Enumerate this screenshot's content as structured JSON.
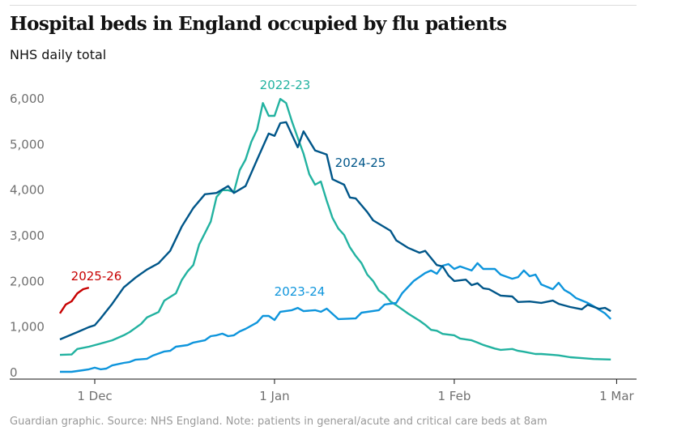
{
  "header": {
    "title": "Hospital beds in England occupied by flu patients",
    "subtitle": "NHS daily total"
  },
  "footer": "Guardian graphic. Source: NHS England. Note: patients in general/acute and critical care beds at 8am",
  "chart_data": {
    "type": "line",
    "title": "Hospital beds in England occupied by flu patients",
    "subtitle": "NHS daily total",
    "xlabel": "",
    "ylabel": "",
    "ylim": [
      0,
      6000
    ],
    "yticks": [
      0,
      1000,
      2000,
      3000,
      4000,
      5000,
      6000
    ],
    "ytick_labels": [
      "0",
      "1,000",
      "2,000",
      "3,000",
      "4,000",
      "5,000",
      "6,000"
    ],
    "xticks": [
      "1 Dec",
      "1 Jan",
      "1 Feb",
      "1 Mar"
    ],
    "grid": false,
    "legend": "direct labels",
    "series": [
      {
        "name": "2022-23",
        "color": "#22b2a0",
        "points": [
          [
            "25 Nov",
            530
          ],
          [
            "27 Nov",
            540
          ],
          [
            "28 Nov",
            660
          ],
          [
            "30 Nov",
            710
          ],
          [
            "2 Dec",
            780
          ],
          [
            "4 Dec",
            850
          ],
          [
            "6 Dec",
            960
          ],
          [
            "7 Dec",
            1030
          ],
          [
            "9 Dec",
            1210
          ],
          [
            "10 Dec",
            1350
          ],
          [
            "12 Dec",
            1470
          ],
          [
            "13 Dec",
            1720
          ],
          [
            "15 Dec",
            1880
          ],
          [
            "16 Dec",
            2170
          ],
          [
            "17 Dec",
            2360
          ],
          [
            "18 Dec",
            2500
          ],
          [
            "19 Dec",
            2950
          ],
          [
            "21 Dec",
            3450
          ],
          [
            "22 Dec",
            3990
          ],
          [
            "23 Dec",
            4140
          ],
          [
            "24 Dec",
            4140
          ],
          [
            "25 Dec",
            4100
          ],
          [
            "26 Dec",
            4580
          ],
          [
            "27 Dec",
            4810
          ],
          [
            "28 Dec",
            5200
          ],
          [
            "29 Dec",
            5470
          ],
          [
            "30 Dec",
            6050
          ],
          [
            "31 Dec",
            5770
          ],
          [
            "1 Jan",
            5770
          ],
          [
            "2 Jan",
            6140
          ],
          [
            "3 Jan",
            6050
          ],
          [
            "4 Jan",
            5650
          ],
          [
            "5 Jan",
            5290
          ],
          [
            "6 Jan",
            4940
          ],
          [
            "7 Jan",
            4490
          ],
          [
            "8 Jan",
            4260
          ],
          [
            "9 Jan",
            4330
          ],
          [
            "10 Jan",
            3910
          ],
          [
            "11 Jan",
            3530
          ],
          [
            "12 Jan",
            3300
          ],
          [
            "13 Jan",
            3160
          ],
          [
            "14 Jan",
            2890
          ],
          [
            "15 Jan",
            2700
          ],
          [
            "16 Jan",
            2540
          ],
          [
            "17 Jan",
            2290
          ],
          [
            "18 Jan",
            2150
          ],
          [
            "19 Jan",
            1940
          ],
          [
            "20 Jan",
            1850
          ],
          [
            "21 Jan",
            1700
          ],
          [
            "22 Jan",
            1620
          ],
          [
            "23 Jan",
            1530
          ],
          [
            "24 Jan",
            1440
          ],
          [
            "26 Jan",
            1280
          ],
          [
            "27 Jan",
            1190
          ],
          [
            "28 Jan",
            1080
          ],
          [
            "29 Jan",
            1060
          ],
          [
            "30 Jan",
            990
          ],
          [
            "1 Feb",
            960
          ],
          [
            "2 Feb",
            890
          ],
          [
            "4 Feb",
            850
          ],
          [
            "5 Feb",
            800
          ],
          [
            "6 Feb",
            750
          ],
          [
            "8 Feb",
            670
          ],
          [
            "9 Feb",
            640
          ],
          [
            "11 Feb",
            660
          ],
          [
            "12 Feb",
            620
          ],
          [
            "13 Feb",
            600
          ],
          [
            "15 Feb",
            550
          ],
          [
            "16 Feb",
            550
          ],
          [
            "18 Feb",
            530
          ],
          [
            "19 Feb",
            520
          ],
          [
            "21 Feb",
            480
          ],
          [
            "23 Feb",
            460
          ],
          [
            "25 Feb",
            440
          ],
          [
            "28 Feb",
            430
          ]
        ]
      },
      {
        "name": "2023-24",
        "color": "#0e95dc",
        "points": [
          [
            "25 Nov",
            160
          ],
          [
            "27 Nov",
            160
          ],
          [
            "29 Nov",
            195
          ],
          [
            "30 Nov",
            215
          ],
          [
            "1 Dec",
            250
          ],
          [
            "2 Dec",
            215
          ],
          [
            "3 Dec",
            230
          ],
          [
            "4 Dec",
            300
          ],
          [
            "6 Dec",
            355
          ],
          [
            "7 Dec",
            375
          ],
          [
            "8 Dec",
            425
          ],
          [
            "10 Dec",
            445
          ],
          [
            "11 Dec",
            515
          ],
          [
            "13 Dec",
            605
          ],
          [
            "14 Dec",
            620
          ],
          [
            "15 Dec",
            710
          ],
          [
            "17 Dec",
            745
          ],
          [
            "18 Dec",
            800
          ],
          [
            "20 Dec",
            850
          ],
          [
            "21 Dec",
            940
          ],
          [
            "22 Dec",
            960
          ],
          [
            "23 Dec",
            995
          ],
          [
            "24 Dec",
            940
          ],
          [
            "25 Dec",
            960
          ],
          [
            "26 Dec",
            1045
          ],
          [
            "27 Dec",
            1100
          ],
          [
            "29 Dec",
            1240
          ],
          [
            "30 Dec",
            1385
          ],
          [
            "31 Dec",
            1385
          ],
          [
            "1 Jan",
            1295
          ],
          [
            "2 Jan",
            1475
          ],
          [
            "4 Jan",
            1510
          ],
          [
            "5 Jan",
            1560
          ],
          [
            "6 Jan",
            1490
          ],
          [
            "8 Jan",
            1510
          ],
          [
            "9 Jan",
            1475
          ],
          [
            "10 Jan",
            1545
          ],
          [
            "12 Jan",
            1315
          ],
          [
            "15 Jan",
            1330
          ],
          [
            "16 Jan",
            1455
          ],
          [
            "19 Jan",
            1510
          ],
          [
            "20 Jan",
            1635
          ],
          [
            "22 Jan",
            1670
          ],
          [
            "23 Jan",
            1880
          ],
          [
            "25 Jan",
            2150
          ],
          [
            "27 Jan",
            2325
          ],
          [
            "28 Jan",
            2380
          ],
          [
            "29 Jan",
            2310
          ],
          [
            "30 Jan",
            2485
          ],
          [
            "31 Jan",
            2520
          ],
          [
            "1 Feb",
            2415
          ],
          [
            "2 Feb",
            2470
          ],
          [
            "4 Feb",
            2380
          ],
          [
            "5 Feb",
            2540
          ],
          [
            "6 Feb",
            2415
          ],
          [
            "8 Feb",
            2415
          ],
          [
            "9 Feb",
            2290
          ],
          [
            "11 Feb",
            2200
          ],
          [
            "12 Feb",
            2235
          ],
          [
            "13 Feb",
            2380
          ],
          [
            "14 Feb",
            2255
          ],
          [
            "15 Feb",
            2290
          ],
          [
            "16 Feb",
            2075
          ],
          [
            "18 Feb",
            1970
          ],
          [
            "19 Feb",
            2110
          ],
          [
            "20 Feb",
            1950
          ],
          [
            "21 Feb",
            1880
          ],
          [
            "22 Feb",
            1775
          ],
          [
            "24 Feb",
            1670
          ],
          [
            "25 Feb",
            1600
          ],
          [
            "27 Feb",
            1440
          ],
          [
            "28 Feb",
            1315
          ]
        ]
      },
      {
        "name": "2024-25",
        "color": "#005689",
        "points": [
          [
            "25 Nov",
            870
          ],
          [
            "28 Nov",
            1030
          ],
          [
            "30 Nov",
            1140
          ],
          [
            "1 Dec",
            1180
          ],
          [
            "2 Dec",
            1330
          ],
          [
            "4 Dec",
            1650
          ],
          [
            "6 Dec",
            2010
          ],
          [
            "8 Dec",
            2220
          ],
          [
            "10 Dec",
            2400
          ],
          [
            "12 Dec",
            2540
          ],
          [
            "14 Dec",
            2810
          ],
          [
            "16 Dec",
            3340
          ],
          [
            "18 Dec",
            3750
          ],
          [
            "20 Dec",
            4050
          ],
          [
            "22 Dec",
            4080
          ],
          [
            "24 Dec",
            4230
          ],
          [
            "25 Dec",
            4080
          ],
          [
            "27 Dec",
            4230
          ],
          [
            "29 Dec",
            4810
          ],
          [
            "31 Dec",
            5380
          ],
          [
            "1 Jan",
            5330
          ],
          [
            "2 Jan",
            5610
          ],
          [
            "3 Jan",
            5630
          ],
          [
            "5 Jan",
            5080
          ],
          [
            "6 Jan",
            5430
          ],
          [
            "8 Jan",
            5010
          ],
          [
            "10 Jan",
            4920
          ],
          [
            "11 Jan",
            4380
          ],
          [
            "13 Jan",
            4260
          ],
          [
            "14 Jan",
            3980
          ],
          [
            "15 Jan",
            3960
          ],
          [
            "17 Jan",
            3660
          ],
          [
            "18 Jan",
            3480
          ],
          [
            "21 Jan",
            3250
          ],
          [
            "22 Jan",
            3040
          ],
          [
            "24 Jan",
            2880
          ],
          [
            "26 Jan",
            2770
          ],
          [
            "27 Jan",
            2810
          ],
          [
            "29 Jan",
            2500
          ],
          [
            "30 Jan",
            2470
          ],
          [
            "31 Jan",
            2270
          ],
          [
            "1 Feb",
            2150
          ],
          [
            "3 Feb",
            2180
          ],
          [
            "4 Feb",
            2060
          ],
          [
            "5 Feb",
            2100
          ],
          [
            "6 Feb",
            1990
          ],
          [
            "7 Feb",
            1970
          ],
          [
            "9 Feb",
            1830
          ],
          [
            "11 Feb",
            1810
          ],
          [
            "12 Feb",
            1690
          ],
          [
            "14 Feb",
            1700
          ],
          [
            "16 Feb",
            1670
          ],
          [
            "18 Feb",
            1720
          ],
          [
            "19 Feb",
            1650
          ],
          [
            "21 Feb",
            1580
          ],
          [
            "23 Feb",
            1530
          ],
          [
            "24 Feb",
            1630
          ],
          [
            "26 Feb",
            1540
          ],
          [
            "27 Feb",
            1560
          ],
          [
            "28 Feb",
            1490
          ]
        ]
      },
      {
        "name": "2025-26",
        "color": "#c70000",
        "points": [
          [
            "25 Nov",
            1440
          ],
          [
            "26 Nov",
            1635
          ],
          [
            "27 Nov",
            1705
          ],
          [
            "28 Nov",
            1880
          ],
          [
            "29 Nov",
            1970
          ],
          [
            "30 Nov",
            2005
          ]
        ]
      }
    ]
  }
}
